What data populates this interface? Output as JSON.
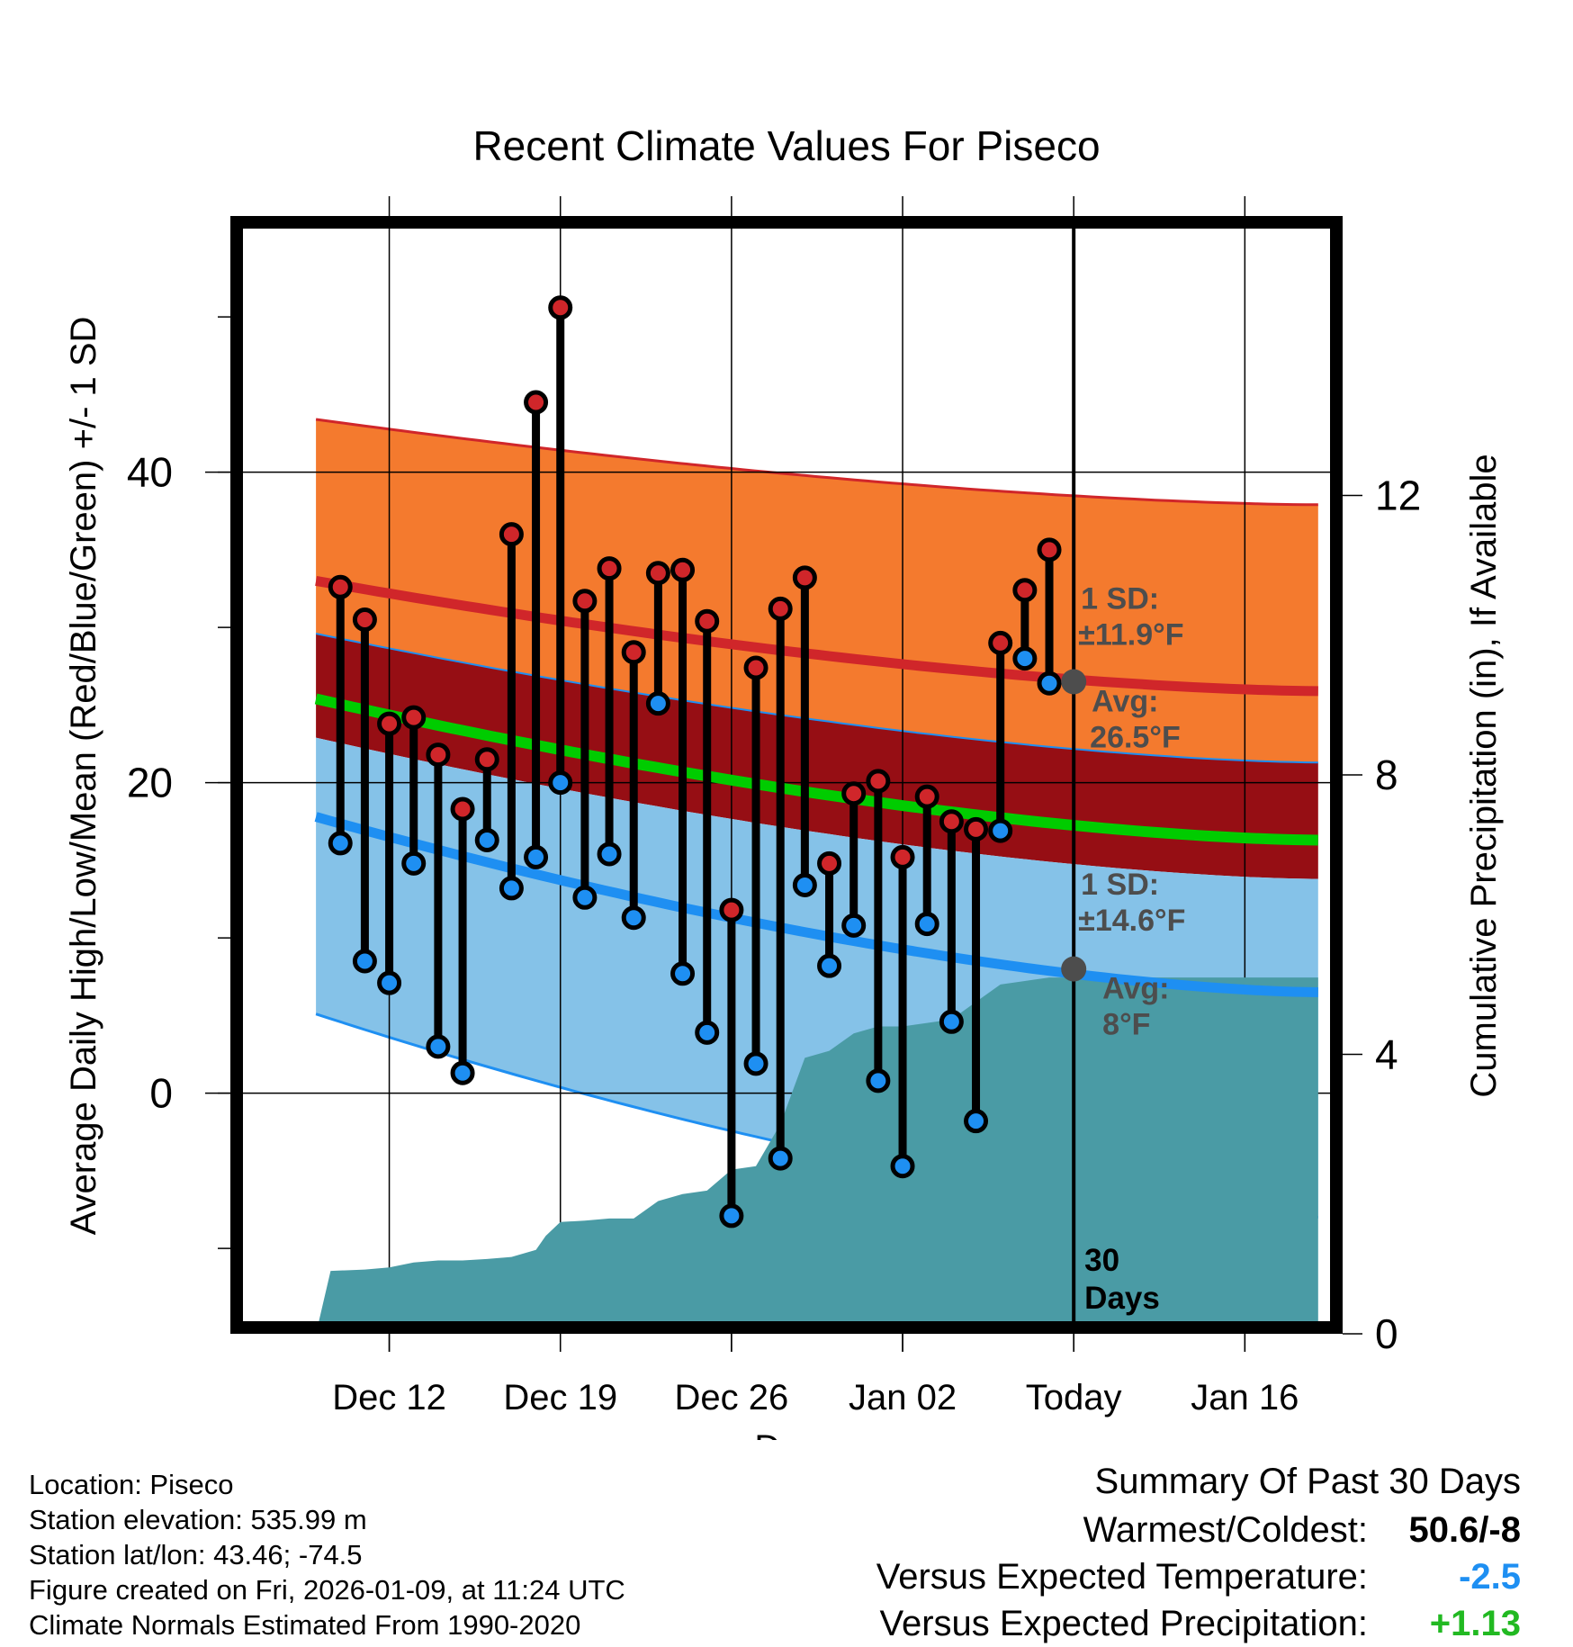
{
  "chart_data": {
    "type": "line",
    "title": "Recent Climate Values For Piseco",
    "xlabel": "Day",
    "ylabel_left": "Average Daily High/Low/Mean (Red/Blue/Green) +/- 1 SD",
    "ylabel_right": "Cumulative Precipitation (in), If Available",
    "x_range": [
      -34.5,
      11
    ],
    "ylim_left": [
      -15.5,
      56.5
    ],
    "ylim_right": [
      0,
      16
    ],
    "x_tick_labels": [
      {
        "x": -28,
        "label": "Dec 12"
      },
      {
        "x": -21,
        "label": "Dec 19"
      },
      {
        "x": -14,
        "label": "Dec 26"
      },
      {
        "x": -7,
        "label": "Jan 02"
      },
      {
        "x": 0,
        "label": "Today"
      },
      {
        "x": 7,
        "label": "Jan 16"
      }
    ],
    "y_ticks_left": [
      0,
      20,
      40
    ],
    "y_ticks_right": [
      0,
      4,
      8,
      12
    ],
    "today_marker_label": "30\nDays",
    "daily_observations": {
      "day_offset": [
        -30,
        -29,
        -28,
        -27,
        -26,
        -25,
        -24,
        -23,
        -22,
        -21,
        -20,
        -19,
        -18,
        -17,
        -16,
        -15,
        -14,
        -13,
        -12,
        -11,
        -10,
        -9,
        -8,
        -7,
        -6,
        -5,
        -4,
        -3,
        -2,
        -1
      ],
      "high": [
        32.6,
        30.5,
        23.8,
        24.2,
        21.8,
        18.3,
        21.5,
        36.0,
        44.5,
        50.6,
        31.7,
        33.8,
        28.4,
        33.5,
        33.7,
        30.4,
        11.8,
        27.4,
        31.2,
        33.2,
        14.8,
        19.3,
        20.1,
        15.2,
        19.1,
        17.5,
        17.0,
        29.0,
        32.4,
        35.0
      ],
      "low": [
        16.1,
        8.5,
        7.1,
        14.8,
        3.0,
        1.3,
        16.3,
        13.2,
        15.2,
        20.0,
        12.6,
        15.4,
        11.3,
        25.1,
        7.7,
        3.9,
        -7.9,
        1.9,
        -4.2,
        13.4,
        8.2,
        10.8,
        0.8,
        -4.7,
        10.9,
        4.6,
        -1.8,
        16.9,
        28.0,
        26.4
      ]
    },
    "normals": {
      "day_offset": [
        -31,
        10
      ],
      "high_plus_sd": [
        43.4,
        37.9
      ],
      "high_avg": [
        33.0,
        25.9
      ],
      "high_minus_sd": [
        29.6,
        21.3
      ],
      "mean_avg": [
        25.4,
        16.3
      ],
      "low_plus_sd": [
        22.9,
        13.8
      ],
      "low_avg": [
        17.8,
        6.5
      ],
      "low_minus_sd": [
        5.1,
        -8.0
      ]
    },
    "cumulative_precipitation": {
      "day_offset": [
        -31,
        -30.4,
        -29,
        -28,
        -27,
        -26,
        -25,
        -24,
        -23,
        -22,
        -21.6,
        -21,
        -20,
        -19,
        -18,
        -17,
        -16,
        -15,
        -14,
        -13,
        -12,
        -11,
        -10,
        -9,
        -8,
        -7,
        -6,
        -5,
        -4,
        -3,
        -2,
        -1,
        0,
        10
      ],
      "inches": [
        0,
        0.9,
        0.92,
        0.95,
        1.02,
        1.05,
        1.05,
        1.07,
        1.1,
        1.2,
        1.4,
        1.6,
        1.62,
        1.65,
        1.65,
        1.9,
        2.0,
        2.05,
        2.35,
        2.4,
        3.0,
        3.95,
        4.05,
        4.3,
        4.4,
        4.4,
        4.45,
        4.5,
        4.75,
        5.0,
        5.05,
        5.1,
        5.1,
        5.1
      ]
    },
    "high_sd_label": "1 SD:\n±11.9°F",
    "high_avg_label": "Avg:\n26.5°F",
    "low_sd_label": "1 SD:\n±14.6°F",
    "low_avg_label": "Avg:\n8°F",
    "today_high_avg": 26.5,
    "today_low_avg": 8,
    "colors": {
      "high_band": "#f47a2e",
      "high_line": "#d0262a",
      "dark_band": "#960e14",
      "mean_line": "#00cc00",
      "low_band": "#85c2e8",
      "low_line": "#1e8ff2",
      "precip": "#4a9ba5",
      "high_dot": "#d0262a",
      "low_dot": "#1e8ff2",
      "label_gray": "#4d4d4d"
    }
  },
  "footer": {
    "location": "Location: Piseco",
    "elevation": "Station elevation: 535.99 m",
    "latlon": "Station lat/lon: 43.46; -74.5",
    "created": "Figure created on Fri, 2026-01-09, at 11:24 UTC",
    "normals": "Climate Normals Estimated From 1990-2020"
  },
  "summary": {
    "title": "Summary Of Past 30 Days",
    "warm_cold_label": "Warmest/Coldest:",
    "warm_cold_value": "50.6/-8",
    "temp_label": "Versus Expected Temperature:",
    "temp_value": "-2.5",
    "temp_color": "#1e8ff2",
    "precip_label": "Versus Expected Precipitation:",
    "precip_value": "+1.13",
    "precip_color": "#22b922"
  }
}
